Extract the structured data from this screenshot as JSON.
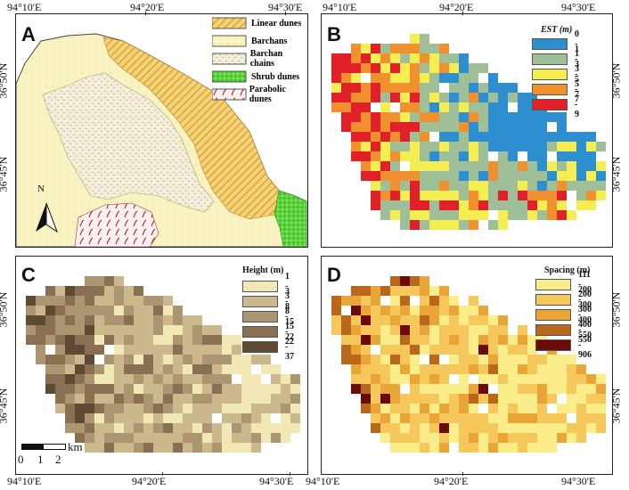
{
  "axes": {
    "top_left": [
      "94°10'E",
      "94°20'E",
      "94°30'E"
    ],
    "top_right": [
      "94°10'E",
      "94°20'E",
      "94°30'E"
    ],
    "bottom_left": [
      "94°10'E",
      "94°20'E",
      "94°30'E"
    ],
    "bottom_right": [
      "94°10'E",
      "94°20'E",
      "94°30'E"
    ],
    "lat_left": [
      "36°50'N",
      "36°45'N"
    ],
    "lat_right": [
      "36°50'N",
      "36°45'N"
    ]
  },
  "panels": {
    "A": {
      "label": "A",
      "legend": [
        "Linear dunes",
        "Barchans",
        "Barchan chains",
        "Shrub dunes",
        "Parabolic dunes"
      ],
      "north": "N"
    },
    "B": {
      "label": "B",
      "legend_title": "EST (m)",
      "legend": [
        {
          "label": "0 - 1",
          "color": "#2e8fd0"
        },
        {
          "label": "1 - 3",
          "color": "#9fbf99"
        },
        {
          "label": "3 - 5",
          "color": "#f4ee52"
        },
        {
          "label": "5 - 7",
          "color": "#f0902f"
        },
        {
          "label": "7 - 9",
          "color": "#e2202a"
        }
      ]
    },
    "C": {
      "label": "C",
      "legend_title": "Height (m)",
      "legend": [
        {
          "label": "1 - 3",
          "color": "#f1e8b6"
        },
        {
          "label": "3 - 8",
          "color": "#cbb98d"
        },
        {
          "label": "8 - 15",
          "color": "#ac9671"
        },
        {
          "label": "15 - 22",
          "color": "#8a7052"
        },
        {
          "label": "22 - 37",
          "color": "#5e4a33"
        }
      ],
      "scale": {
        "labels": [
          "0",
          "1",
          "2"
        ],
        "unit": "km"
      }
    },
    "D": {
      "label": "D",
      "legend_title": "Spacing (m)",
      "legend": [
        {
          "label": "111 - 200",
          "color": "#fbee8a"
        },
        {
          "label": "200 - 300",
          "color": "#f6c75a"
        },
        {
          "label": "300 - 400",
          "color": "#e9a637"
        },
        {
          "label": "400 - 550",
          "color": "#b9671b"
        },
        {
          "label": "550 - 906",
          "color": "#6b0b08"
        }
      ]
    }
  }
}
